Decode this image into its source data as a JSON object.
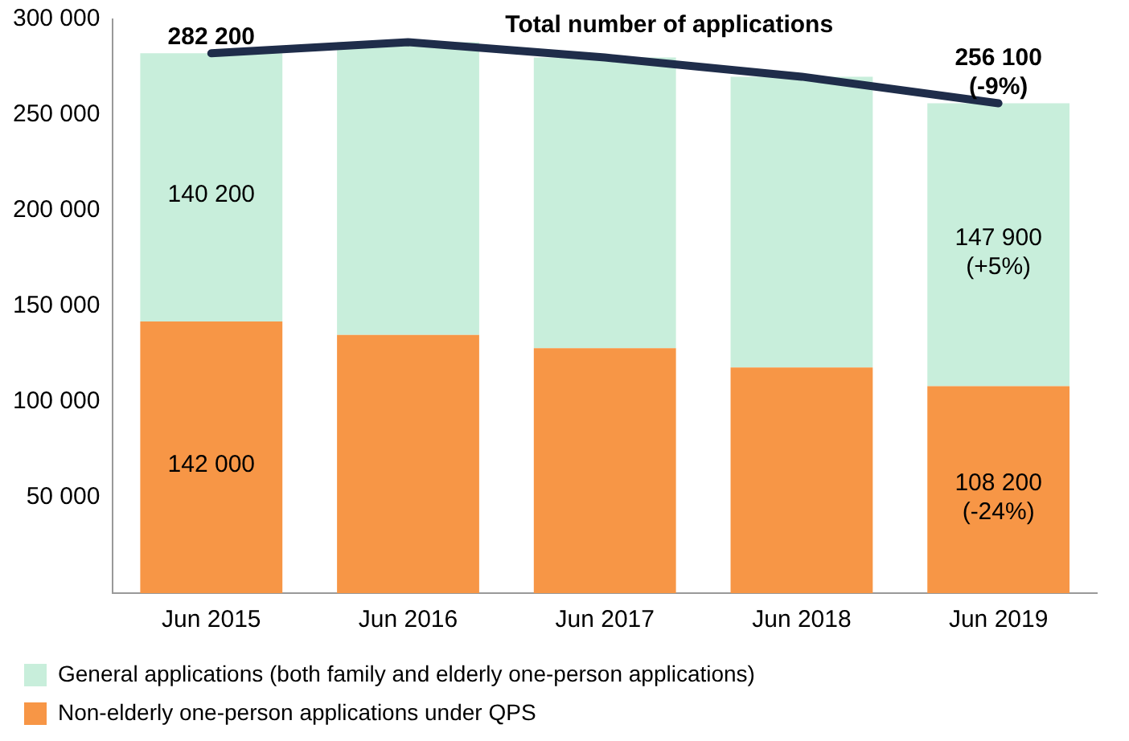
{
  "chart_data": {
    "type": "bar",
    "stacked": true,
    "categories": [
      "Jun 2015",
      "Jun 2016",
      "Jun 2017",
      "Jun 2018",
      "Jun 2019"
    ],
    "ylim": [
      0,
      300000
    ],
    "yticks": [
      {
        "value": 50000,
        "label": "50 000"
      },
      {
        "value": 100000,
        "label": "100 000"
      },
      {
        "value": 150000,
        "label": "150 000"
      },
      {
        "value": 200000,
        "label": "200 000"
      },
      {
        "value": 250000,
        "label": "250 000"
      },
      {
        "value": 300000,
        "label": "300 000"
      }
    ],
    "grid": false,
    "legend": "bottom",
    "series": [
      {
        "name": "Non-elderly one-person applications under QPS",
        "color": "#f79646",
        "values": [
          142000,
          135000,
          128000,
          118000,
          108200
        ],
        "value_labels": [
          "142 000",
          null,
          null,
          null,
          "108 200\n(-24%)"
        ]
      },
      {
        "name": "General applications (both family and elderly one-person applications)",
        "color": "#c8eedb",
        "values": [
          140200,
          153000,
          152000,
          152000,
          147900
        ],
        "value_labels": [
          "140 200",
          null,
          null,
          null,
          "147 900\n(+5%)"
        ]
      },
      {
        "name": "Total number of applications",
        "type": "line",
        "color": "#1f2d4a",
        "values": [
          282200,
          288000,
          280000,
          270000,
          256100
        ],
        "value_labels": [
          "282 200",
          null,
          null,
          null,
          "256 100\n(-9%)"
        ],
        "marker": "none"
      }
    ]
  }
}
